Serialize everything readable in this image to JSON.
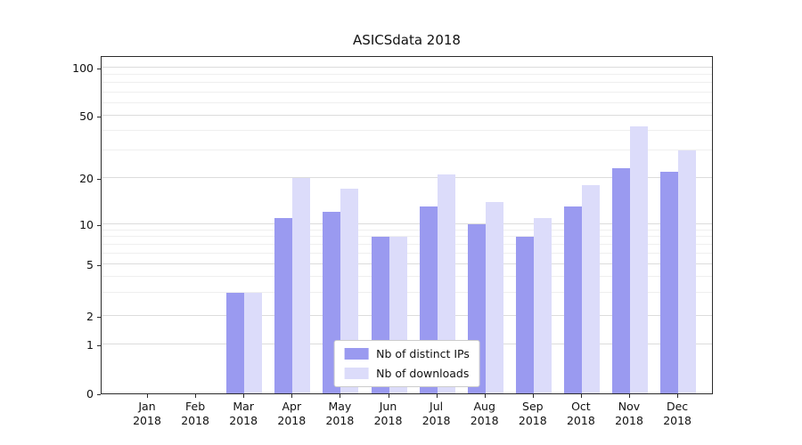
{
  "chart_data": {
    "type": "bar",
    "title": "ASICSdata 2018",
    "categories": [
      "Jan 2018",
      "Feb 2018",
      "Mar 2018",
      "Apr 2018",
      "May 2018",
      "Jun 2018",
      "Jul 2018",
      "Aug 2018",
      "Sep 2018",
      "Oct 2018",
      "Nov 2018",
      "Dec 2018"
    ],
    "series": [
      {
        "name": "Nb of distinct IPs",
        "color": "#9a9af0",
        "values": [
          0,
          0,
          3,
          11,
          12,
          8,
          13,
          10,
          8,
          13,
          23,
          22
        ]
      },
      {
        "name": "Nb of downloads",
        "color": "#dcdcfa",
        "values": [
          0,
          0,
          3,
          20,
          17,
          8,
          21,
          14,
          11,
          18,
          43,
          30
        ]
      }
    ],
    "yscale": "symlog",
    "yticks": [
      0,
      1,
      2,
      5,
      10,
      20,
      50,
      100
    ],
    "ylim": [
      0,
      120
    ],
    "xlabel": "",
    "ylabel": "",
    "grid": true,
    "legend_position": "lower center"
  }
}
